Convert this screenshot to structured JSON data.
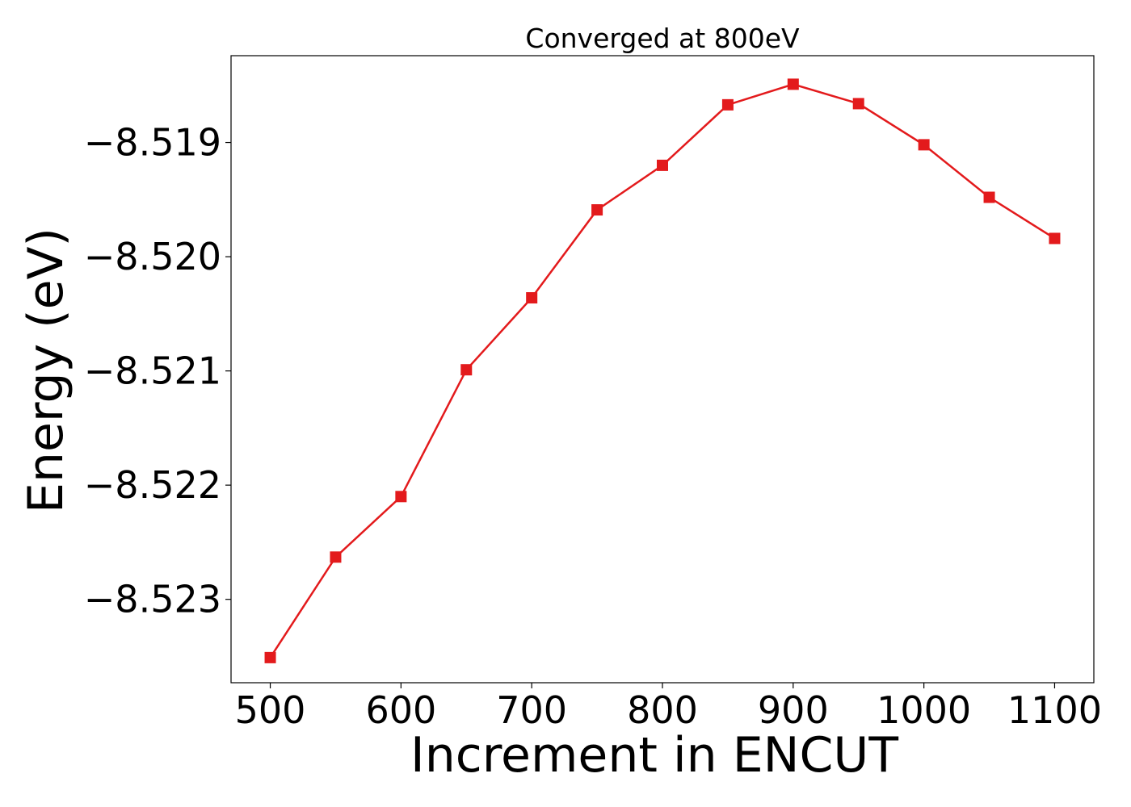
{
  "chart_data": {
    "type": "line",
    "title": "Converged at 800eV",
    "xlabel": "Increment in ENCUT",
    "ylabel": "Energy (eV)",
    "x": [
      500,
      550,
      600,
      650,
      700,
      750,
      800,
      850,
      900,
      950,
      1000,
      1050,
      1100
    ],
    "series": [
      {
        "color": "#e31a1c",
        "marker": "square",
        "values": [
          -8.52351,
          -8.52263,
          -8.5221,
          -8.52099,
          -8.52036,
          -8.51959,
          -8.5192,
          -8.51867,
          -8.51849,
          -8.51866,
          -8.51902,
          -8.51948,
          -8.51984
        ]
      }
    ],
    "xticks": [
      500,
      600,
      700,
      800,
      900,
      1000,
      1100
    ],
    "xtick_labels": [
      "500",
      "600",
      "700",
      "800",
      "900",
      "1000",
      "1100"
    ],
    "yticks": [
      -8.523,
      -8.522,
      -8.521,
      -8.52,
      -8.519
    ],
    "ytick_labels": [
      "−8.523",
      "−8.522",
      "−8.521",
      "−8.520",
      "−8.519"
    ],
    "xlim": [
      470,
      1130
    ],
    "ylim": [
      -8.52373,
      -8.51824
    ],
    "grid": false,
    "legend": "none"
  }
}
